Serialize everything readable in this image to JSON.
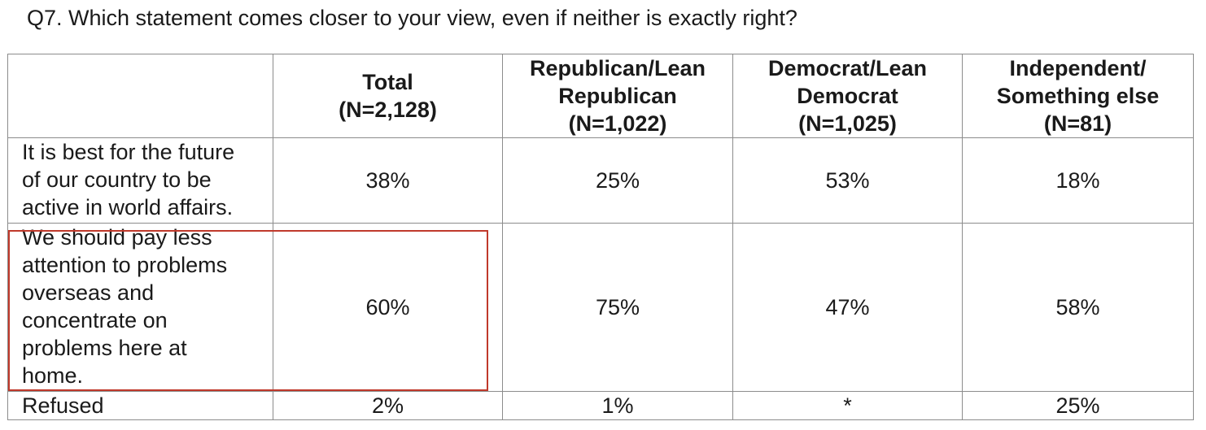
{
  "question": "Q7. Which statement comes closer to your view, even if neither is exactly right?",
  "columns": [
    {
      "line1": "Total",
      "line2": "(N=2,128)",
      "line3": ""
    },
    {
      "line1": "Republican/Lean",
      "line2": "Republican",
      "line3": "(N=1,022)"
    },
    {
      "line1": "Democrat/Lean",
      "line2": "Democrat",
      "line3": "(N=1,025)"
    },
    {
      "line1": "Independent/",
      "line2": "Something else",
      "line3": "(N=81)"
    }
  ],
  "rows": [
    {
      "label_lines": [
        "It is best for the future",
        "of our country to be",
        "active in world affairs."
      ],
      "values": [
        "38%",
        "25%",
        "53%",
        "18%"
      ]
    },
    {
      "label_lines": [
        "We should pay less",
        "attention to problems",
        "overseas and",
        "concentrate on",
        "problems here at",
        "home."
      ],
      "values": [
        "60%",
        "75%",
        "47%",
        "58%"
      ]
    },
    {
      "label_lines": [
        "Refused"
      ],
      "values": [
        "2%",
        "1%",
        "*",
        "25%"
      ]
    }
  ],
  "highlight_color": "#c0392b"
}
